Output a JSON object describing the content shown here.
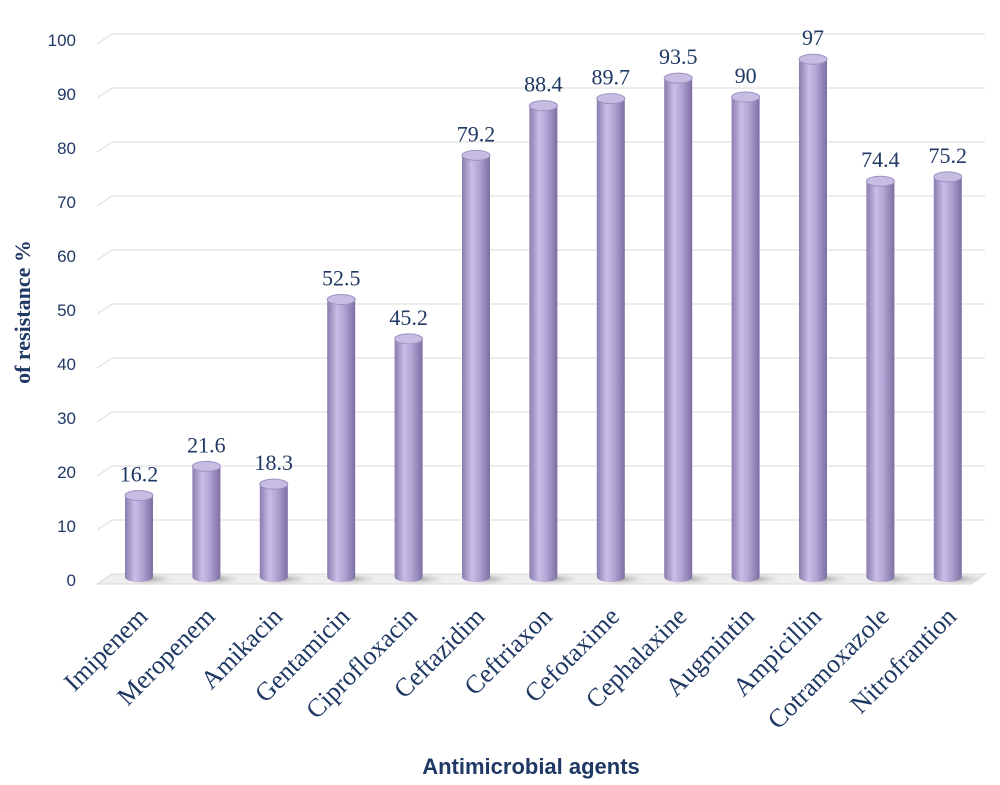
{
  "chart_data": {
    "type": "bar",
    "title": "",
    "xlabel": "Antimicrobial agents",
    "ylabel": "of resistance %",
    "ylim": [
      0,
      100
    ],
    "yticks": [
      0,
      10,
      20,
      30,
      40,
      50,
      60,
      70,
      80,
      90,
      100
    ],
    "categories": [
      "Imipenem",
      "Meropenem",
      "Amikacin",
      "Gentamicin",
      "Ciprofloxacin",
      "Ceftazidim",
      "Ceftriaxon",
      "Cefotaxime",
      "Cephalaxine",
      "Augmintin",
      "Ampicillin",
      "Cotramoxazole",
      "Nitrofrantion"
    ],
    "values": [
      16.2,
      21.6,
      18.3,
      52.5,
      45.2,
      79.2,
      88.4,
      89.7,
      93.5,
      90,
      97,
      74.4,
      75.2
    ],
    "value_labels": [
      "16.2",
      "21.6",
      "18.3",
      "52.5",
      "45.2",
      "79.2",
      "88.4",
      "89.7",
      "93.5",
      "90",
      "97",
      "74.4",
      "75.2"
    ],
    "grid": true,
    "legend": "none",
    "bar_color": "#b4a7d6",
    "text_color": "#1f3864"
  }
}
